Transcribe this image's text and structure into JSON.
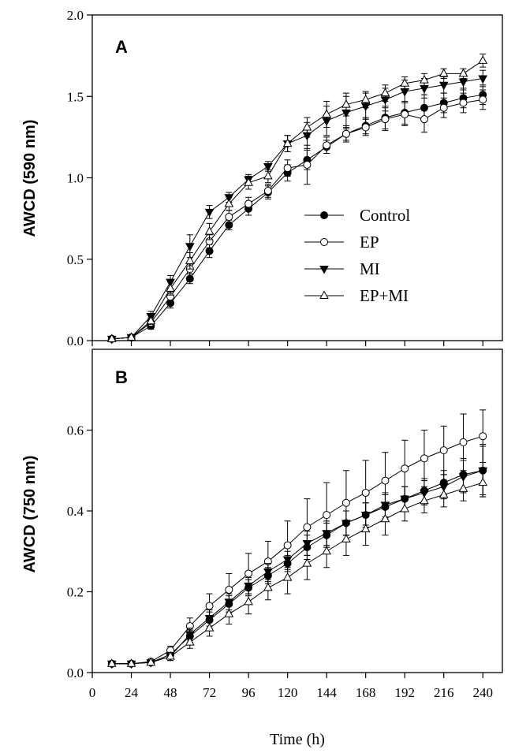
{
  "chart_data": [
    {
      "type": "line",
      "panel_label": "A",
      "ylabel": "AWCD (590 nm)",
      "xlabel": "",
      "ylim": [
        0.0,
        2.0
      ],
      "yticks": [
        "0.0",
        "0.5",
        "1.0",
        "1.5",
        "2.0"
      ],
      "xlim": [
        0,
        252
      ],
      "legend_position": "center-right",
      "x": [
        12,
        24,
        36,
        48,
        60,
        72,
        84,
        96,
        108,
        120,
        132,
        144,
        156,
        168,
        180,
        192,
        204,
        216,
        228,
        240
      ],
      "series": [
        {
          "name": "Control",
          "marker": "filled-circle",
          "values": [
            0.01,
            0.02,
            0.09,
            0.23,
            0.38,
            0.55,
            0.71,
            0.81,
            0.91,
            1.03,
            1.11,
            1.19,
            1.27,
            1.32,
            1.37,
            1.4,
            1.43,
            1.46,
            1.49,
            1.51
          ],
          "errors": [
            0.01,
            0.01,
            0.02,
            0.03,
            0.03,
            0.04,
            0.03,
            0.04,
            0.04,
            0.05,
            0.06,
            0.04,
            0.04,
            0.05,
            0.07,
            0.07,
            0.08,
            0.06,
            0.06,
            0.06
          ]
        },
        {
          "name": "EP",
          "marker": "open-circle",
          "values": [
            0.01,
            0.02,
            0.11,
            0.27,
            0.44,
            0.61,
            0.76,
            0.84,
            0.92,
            1.06,
            1.08,
            1.2,
            1.27,
            1.31,
            1.36,
            1.39,
            1.36,
            1.43,
            1.46,
            1.48
          ],
          "errors": [
            0.01,
            0.01,
            0.02,
            0.03,
            0.03,
            0.04,
            0.04,
            0.04,
            0.04,
            0.05,
            0.12,
            0.05,
            0.05,
            0.05,
            0.07,
            0.07,
            0.08,
            0.06,
            0.06,
            0.06
          ]
        },
        {
          "name": "MI",
          "marker": "filled-triangle-down",
          "values": [
            0.01,
            0.02,
            0.15,
            0.36,
            0.58,
            0.79,
            0.88,
            0.99,
            1.07,
            1.21,
            1.26,
            1.35,
            1.4,
            1.44,
            1.48,
            1.53,
            1.55,
            1.57,
            1.59,
            1.61
          ],
          "errors": [
            0.01,
            0.01,
            0.03,
            0.04,
            0.07,
            0.04,
            0.03,
            0.03,
            0.03,
            0.05,
            0.08,
            0.09,
            0.1,
            0.08,
            0.07,
            0.07,
            0.06,
            0.05,
            0.05,
            0.05
          ]
        },
        {
          "name": "EP+MI",
          "marker": "open-triangle-up",
          "values": [
            0.01,
            0.02,
            0.12,
            0.32,
            0.49,
            0.67,
            0.84,
            0.97,
            1.01,
            1.21,
            1.31,
            1.39,
            1.45,
            1.48,
            1.52,
            1.58,
            1.6,
            1.64,
            1.64,
            1.72
          ],
          "errors": [
            0.01,
            0.01,
            0.02,
            0.04,
            0.05,
            0.05,
            0.04,
            0.04,
            0.04,
            0.05,
            0.06,
            0.08,
            0.07,
            0.05,
            0.05,
            0.04,
            0.04,
            0.03,
            0.03,
            0.04
          ]
        }
      ]
    },
    {
      "type": "line",
      "panel_label": "B",
      "ylabel": "AWCD (750 nm)",
      "xlabel": "Time (h)",
      "ylim": [
        0.0,
        0.8
      ],
      "yticks": [
        "0.0",
        "0.2",
        "0.4",
        "0.6"
      ],
      "xlim": [
        0,
        252
      ],
      "xticks": [
        "0",
        "24",
        "48",
        "72",
        "96",
        "120",
        "144",
        "168",
        "192",
        "216",
        "240"
      ],
      "x": [
        12,
        24,
        36,
        48,
        60,
        72,
        84,
        96,
        108,
        120,
        132,
        144,
        156,
        168,
        180,
        192,
        204,
        216,
        228,
        240
      ],
      "series": [
        {
          "name": "Control",
          "marker": "filled-circle",
          "values": [
            0.022,
            0.022,
            0.025,
            0.045,
            0.09,
            0.13,
            0.17,
            0.21,
            0.24,
            0.27,
            0.31,
            0.34,
            0.37,
            0.39,
            0.41,
            0.43,
            0.45,
            0.47,
            0.49,
            0.5
          ],
          "errors": [
            0.003,
            0.003,
            0.005,
            0.01,
            0.015,
            0.02,
            0.02,
            0.02,
            0.02,
            0.02,
            0.03,
            0.03,
            0.03,
            0.03,
            0.03,
            0.03,
            0.03,
            0.03,
            0.04,
            0.06
          ]
        },
        {
          "name": "EP",
          "marker": "open-circle",
          "values": [
            0.022,
            0.022,
            0.027,
            0.055,
            0.115,
            0.165,
            0.205,
            0.245,
            0.275,
            0.315,
            0.36,
            0.39,
            0.42,
            0.445,
            0.475,
            0.505,
            0.53,
            0.55,
            0.57,
            0.585
          ],
          "errors": [
            0.003,
            0.003,
            0.005,
            0.01,
            0.02,
            0.03,
            0.04,
            0.05,
            0.05,
            0.06,
            0.07,
            0.08,
            0.08,
            0.08,
            0.07,
            0.07,
            0.07,
            0.06,
            0.07,
            0.065
          ]
        },
        {
          "name": "MI",
          "marker": "filled-triangle-down",
          "values": [
            0.022,
            0.022,
            0.025,
            0.04,
            0.095,
            0.135,
            0.175,
            0.215,
            0.25,
            0.28,
            0.32,
            0.345,
            0.37,
            0.39,
            0.415,
            0.43,
            0.445,
            0.46,
            0.485,
            0.5
          ],
          "errors": [
            0.003,
            0.003,
            0.005,
            0.01,
            0.015,
            0.02,
            0.02,
            0.02,
            0.02,
            0.02,
            0.03,
            0.03,
            0.03,
            0.03,
            0.03,
            0.03,
            0.03,
            0.03,
            0.04,
            0.065
          ]
        },
        {
          "name": "EP+MI",
          "marker": "open-triangle-up",
          "values": [
            0.022,
            0.022,
            0.025,
            0.04,
            0.075,
            0.11,
            0.145,
            0.175,
            0.21,
            0.235,
            0.27,
            0.3,
            0.33,
            0.355,
            0.38,
            0.405,
            0.425,
            0.44,
            0.455,
            0.47
          ],
          "errors": [
            0.003,
            0.003,
            0.005,
            0.01,
            0.015,
            0.02,
            0.025,
            0.03,
            0.03,
            0.04,
            0.04,
            0.04,
            0.04,
            0.04,
            0.04,
            0.03,
            0.03,
            0.03,
            0.03,
            0.035
          ]
        }
      ]
    }
  ]
}
